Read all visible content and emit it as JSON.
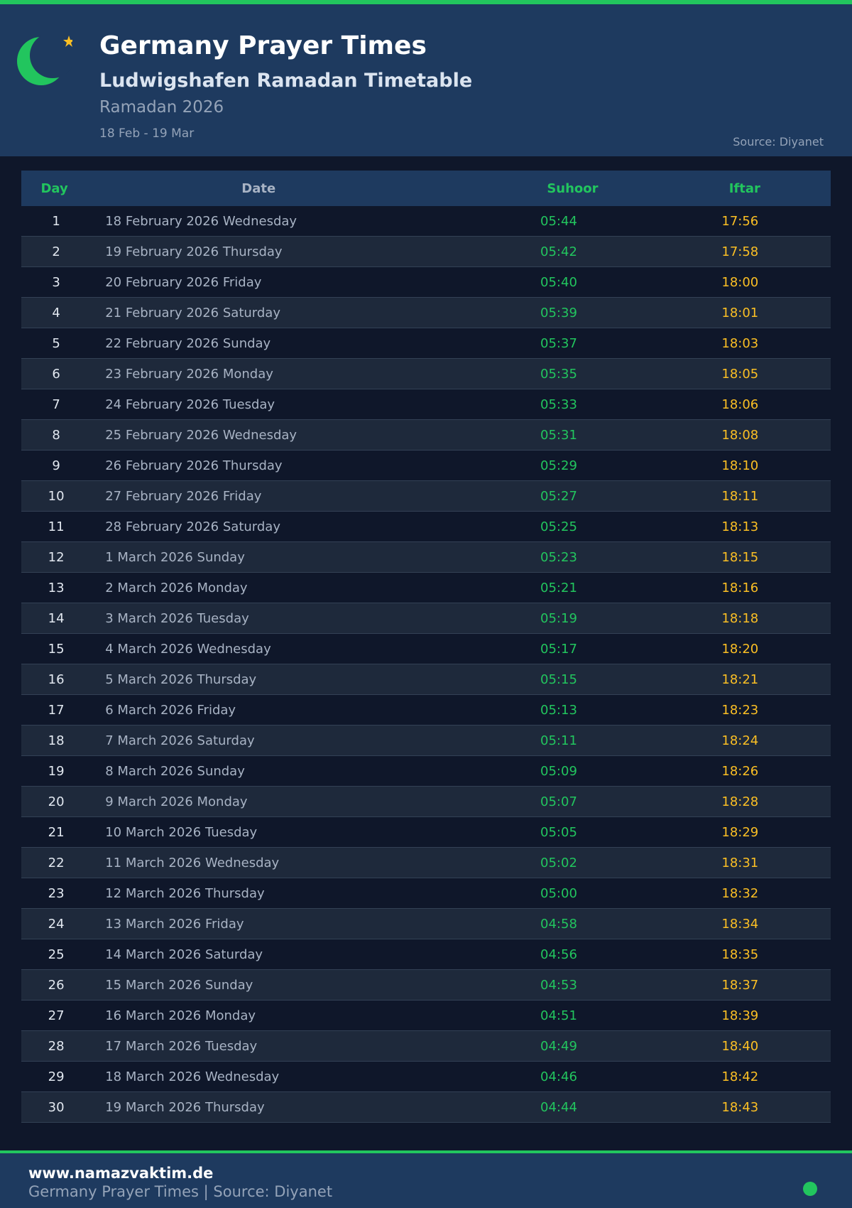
{
  "colors": {
    "accent": "#22c55e",
    "iftar": "#fbbf24",
    "header_bg": "#1e3a5f",
    "page_bg": "#0f172a"
  },
  "header": {
    "icon": "crescent-star-icon",
    "title": "Germany Prayer Times",
    "subtitle": "Ludwigshafen Ramadan Timetable",
    "period": "Ramadan 2026",
    "range": "18 Feb - 19 Mar",
    "source": "Source: Diyanet"
  },
  "table": {
    "columns": [
      "Day",
      "Date",
      "Suhoor",
      "Iftar"
    ],
    "rows": [
      [
        "1",
        "18 February 2026 Wednesday",
        "05:44",
        "17:56"
      ],
      [
        "2",
        "19 February 2026 Thursday",
        "05:42",
        "17:58"
      ],
      [
        "3",
        "20 February 2026 Friday",
        "05:40",
        "18:00"
      ],
      [
        "4",
        "21 February 2026 Saturday",
        "05:39",
        "18:01"
      ],
      [
        "5",
        "22 February 2026 Sunday",
        "05:37",
        "18:03"
      ],
      [
        "6",
        "23 February 2026 Monday",
        "05:35",
        "18:05"
      ],
      [
        "7",
        "24 February 2026 Tuesday",
        "05:33",
        "18:06"
      ],
      [
        "8",
        "25 February 2026 Wednesday",
        "05:31",
        "18:08"
      ],
      [
        "9",
        "26 February 2026 Thursday",
        "05:29",
        "18:10"
      ],
      [
        "10",
        "27 February 2026 Friday",
        "05:27",
        "18:11"
      ],
      [
        "11",
        "28 February 2026 Saturday",
        "05:25",
        "18:13"
      ],
      [
        "12",
        "1 March 2026 Sunday",
        "05:23",
        "18:15"
      ],
      [
        "13",
        "2 March 2026 Monday",
        "05:21",
        "18:16"
      ],
      [
        "14",
        "3 March 2026 Tuesday",
        "05:19",
        "18:18"
      ],
      [
        "15",
        "4 March 2026 Wednesday",
        "05:17",
        "18:20"
      ],
      [
        "16",
        "5 March 2026 Thursday",
        "05:15",
        "18:21"
      ],
      [
        "17",
        "6 March 2026 Friday",
        "05:13",
        "18:23"
      ],
      [
        "18",
        "7 March 2026 Saturday",
        "05:11",
        "18:24"
      ],
      [
        "19",
        "8 March 2026 Sunday",
        "05:09",
        "18:26"
      ],
      [
        "20",
        "9 March 2026 Monday",
        "05:07",
        "18:28"
      ],
      [
        "21",
        "10 March 2026 Tuesday",
        "05:05",
        "18:29"
      ],
      [
        "22",
        "11 March 2026 Wednesday",
        "05:02",
        "18:31"
      ],
      [
        "23",
        "12 March 2026 Thursday",
        "05:00",
        "18:32"
      ],
      [
        "24",
        "13 March 2026 Friday",
        "04:58",
        "18:34"
      ],
      [
        "25",
        "14 March 2026 Saturday",
        "04:56",
        "18:35"
      ],
      [
        "26",
        "15 March 2026 Sunday",
        "04:53",
        "18:37"
      ],
      [
        "27",
        "16 March 2026 Monday",
        "04:51",
        "18:39"
      ],
      [
        "28",
        "17 March 2026 Tuesday",
        "04:49",
        "18:40"
      ],
      [
        "29",
        "18 March 2026 Wednesday",
        "04:46",
        "18:42"
      ],
      [
        "30",
        "19 March 2026 Thursday",
        "04:44",
        "18:43"
      ]
    ]
  },
  "footer": {
    "url": "www.namazvaktim.de",
    "text": "Germany Prayer Times | Source: Diyanet",
    "icon": "status-dot-icon"
  }
}
